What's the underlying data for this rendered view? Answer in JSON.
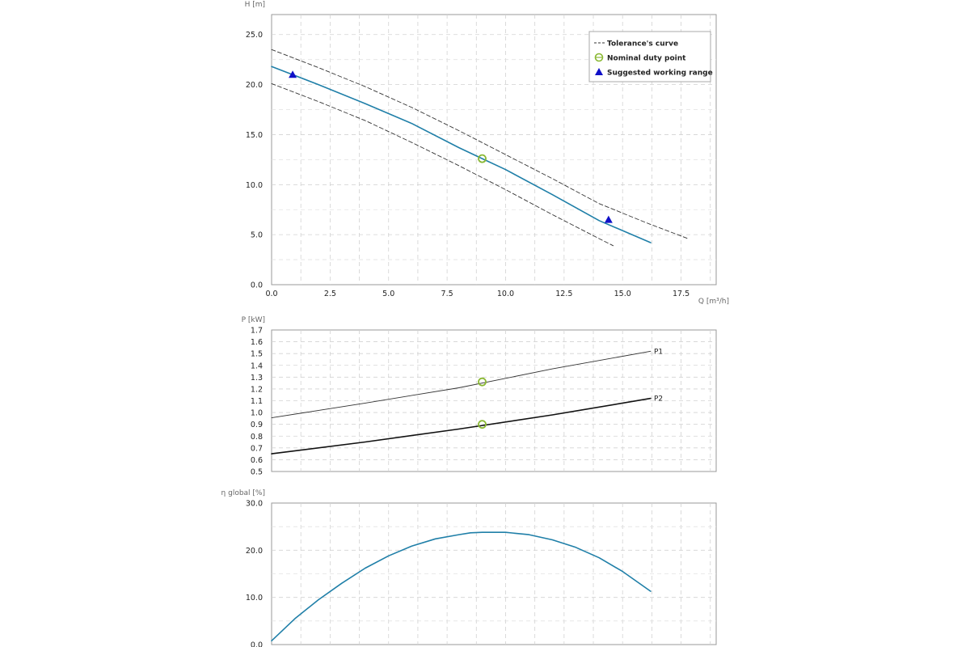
{
  "chart_data": [
    {
      "id": "head",
      "type": "line",
      "ylabel": "H [m]",
      "xlabel": "Q [m³/h]",
      "xlim": [
        0,
        19
      ],
      "ylim": [
        0,
        27
      ],
      "xticks": [
        0,
        2.5,
        5,
        7.5,
        10,
        12.5,
        15,
        17.5
      ],
      "xtick_labels": [
        "0.0",
        "2.5",
        "5.0",
        "7.5",
        "10.0",
        "12.5",
        "15.0",
        "17.5"
      ],
      "yticks": [
        0,
        5,
        10,
        15,
        20,
        25
      ],
      "ytick_labels": [
        "0.0",
        "5.0",
        "10.0",
        "15.0",
        "20.0",
        "25.0"
      ],
      "grid": true,
      "legend_position": "top-right",
      "legend": [
        {
          "label": "Tolerance's curve",
          "marker": "dashed-line"
        },
        {
          "label": "Nominal duty point",
          "marker": "green-circle"
        },
        {
          "label": "Suggested working range",
          "marker": "blue-triangle"
        }
      ],
      "series": [
        {
          "role": "main",
          "color": "#1f7fa8",
          "x": [
            0,
            2,
            4,
            6,
            8,
            9,
            10,
            12,
            14,
            16.2
          ],
          "y": [
            21.8,
            20.0,
            18.1,
            16.1,
            13.7,
            12.6,
            11.5,
            9.0,
            6.4,
            4.2
          ]
        },
        {
          "role": "tolerance-upper",
          "color": "#333333",
          "x": [
            0,
            2,
            4,
            6,
            8,
            10,
            12,
            14,
            16,
            17.8
          ],
          "y": [
            23.5,
            21.7,
            19.8,
            17.7,
            15.4,
            13.0,
            10.6,
            8.1,
            6.2,
            4.6
          ]
        },
        {
          "role": "tolerance-lower",
          "color": "#333333",
          "x": [
            0,
            2,
            4,
            6,
            8,
            10,
            12,
            14,
            14.6
          ],
          "y": [
            20.1,
            18.3,
            16.4,
            14.2,
            11.9,
            9.5,
            7.0,
            4.6,
            3.9
          ]
        }
      ],
      "duty_point": {
        "x": 9.0,
        "y": 12.6,
        "color": "#8ab833"
      },
      "working_range": [
        {
          "x": 0.9,
          "y": 21.0
        },
        {
          "x": 14.4,
          "y": 6.5
        }
      ],
      "working_range_color": "#1010c8"
    },
    {
      "id": "power",
      "type": "line",
      "ylabel": "P [kW]",
      "xlim": [
        0,
        19
      ],
      "ylim": [
        0.5,
        1.7
      ],
      "xticks": [
        0,
        2.5,
        5,
        7.5,
        10,
        12.5,
        15,
        17.5
      ],
      "yticks": [
        0.5,
        0.6,
        0.7,
        0.8,
        0.9,
        1.0,
        1.1,
        1.2,
        1.3,
        1.4,
        1.5,
        1.6,
        1.7
      ],
      "ytick_labels": [
        "0.5",
        "0.6",
        "0.7",
        "0.8",
        "0.9",
        "1.0",
        "1.1",
        "1.2",
        "1.3",
        "1.4",
        "1.5",
        "1.6",
        "1.7"
      ],
      "grid": true,
      "series": [
        {
          "name": "P1",
          "color": "#333333",
          "x": [
            0,
            4,
            8,
            12,
            16.2
          ],
          "y": [
            0.955,
            1.08,
            1.21,
            1.37,
            1.52
          ]
        },
        {
          "name": "P2",
          "color": "#111111",
          "x": [
            0,
            4,
            8,
            12,
            16.2
          ],
          "y": [
            0.65,
            0.75,
            0.86,
            0.98,
            1.12
          ]
        }
      ],
      "duty_points": [
        {
          "x": 9.0,
          "y": 1.26
        },
        {
          "x": 9.0,
          "y": 0.9
        }
      ],
      "duty_color": "#8ab833"
    },
    {
      "id": "efficiency",
      "type": "line",
      "ylabel": "η global [%]",
      "xlim": [
        0,
        19
      ],
      "ylim": [
        0,
        30
      ],
      "xticks": [
        0,
        2.5,
        5,
        7.5,
        10,
        12.5,
        15,
        17.5
      ],
      "yticks": [
        0,
        10,
        20,
        30
      ],
      "ytick_labels": [
        "0.0",
        "10.0",
        "20.0",
        "30.0"
      ],
      "grid": true,
      "series": [
        {
          "color": "#1f7fa8",
          "x": [
            0,
            1,
            2,
            3,
            4,
            5,
            6,
            7,
            8,
            8.5,
            9,
            10,
            11,
            12,
            13,
            14,
            15,
            16.2
          ],
          "y": [
            0.8,
            5.5,
            9.5,
            13.0,
            16.2,
            18.8,
            20.9,
            22.4,
            23.3,
            23.7,
            23.8,
            23.8,
            23.3,
            22.2,
            20.6,
            18.4,
            15.5,
            11.3
          ]
        }
      ]
    }
  ]
}
